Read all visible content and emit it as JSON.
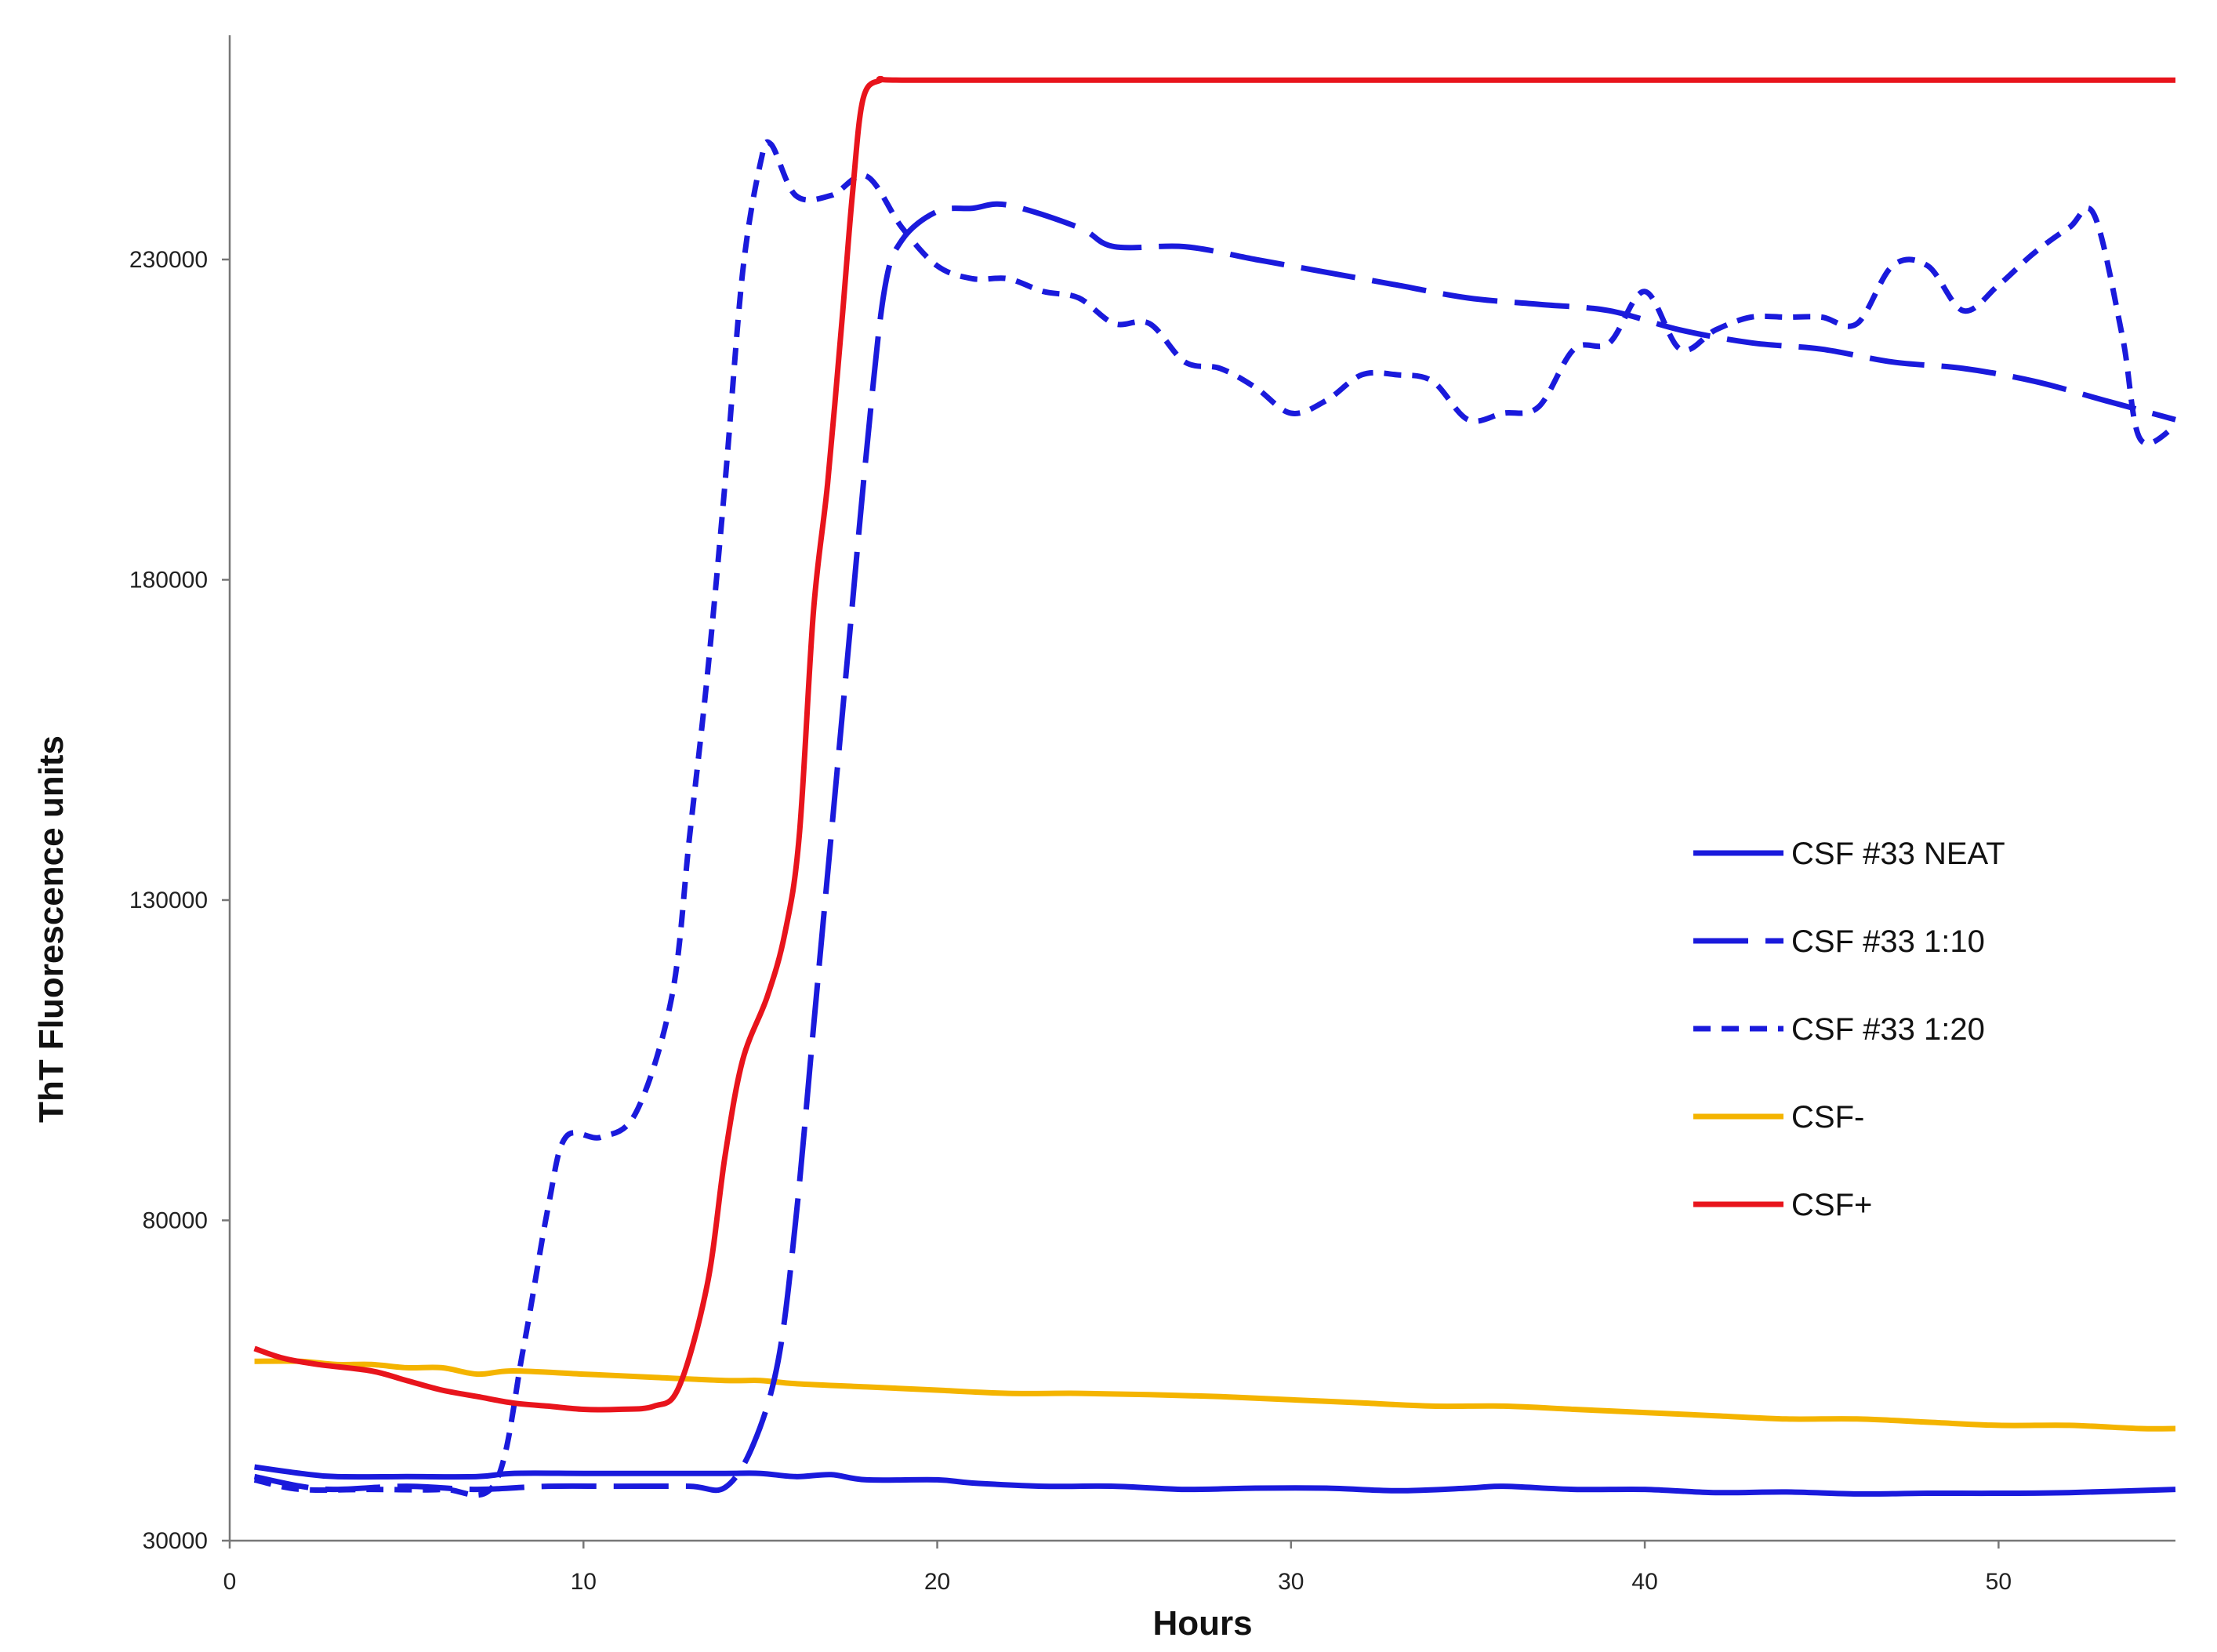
{
  "chart_data": {
    "type": "line",
    "title": "",
    "xlabel": "Hours",
    "ylabel": "ThT Fluorescence units",
    "xlim": [
      0,
      55
    ],
    "ylim": [
      30000,
      265000
    ],
    "x_ticks": [
      0,
      10,
      20,
      30,
      40,
      50
    ],
    "y_ticks": [
      30000,
      80000,
      130000,
      180000,
      230000
    ],
    "grid": false,
    "legend_position": "right",
    "series": [
      {
        "name": "CSF #33 NEAT",
        "color": "#1a1adc",
        "dash": "solid",
        "points": [
          [
            0.7,
            41500
          ],
          [
            2,
            40500
          ],
          [
            3,
            40000
          ],
          [
            5,
            40000
          ],
          [
            7,
            40000
          ],
          [
            8,
            40500
          ],
          [
            10,
            40500
          ],
          [
            12,
            40500
          ],
          [
            14,
            40500
          ],
          [
            15,
            40500
          ],
          [
            16,
            40000
          ],
          [
            17,
            40300
          ],
          [
            18,
            39500
          ],
          [
            20,
            39500
          ],
          [
            21,
            39000
          ],
          [
            23,
            38500
          ],
          [
            25,
            38500
          ],
          [
            27,
            38000
          ],
          [
            29,
            38200
          ],
          [
            31,
            38200
          ],
          [
            33,
            37800
          ],
          [
            35,
            38200
          ],
          [
            36,
            38500
          ],
          [
            38,
            38000
          ],
          [
            40,
            38000
          ],
          [
            42,
            37500
          ],
          [
            44,
            37600
          ],
          [
            46,
            37300
          ],
          [
            48,
            37400
          ],
          [
            50,
            37400
          ],
          [
            52,
            37500
          ],
          [
            55,
            38000
          ]
        ]
      },
      {
        "name": "CSF #33 1:10",
        "color": "#1a1adc",
        "dash": "long",
        "points": [
          [
            0.7,
            40000
          ],
          [
            2,
            38500
          ],
          [
            3,
            38000
          ],
          [
            5,
            38500
          ],
          [
            7,
            38000
          ],
          [
            9,
            38500
          ],
          [
            11,
            38500
          ],
          [
            13,
            38500
          ],
          [
            14,
            38300
          ],
          [
            14.8,
            45000
          ],
          [
            15.5,
            58000
          ],
          [
            16,
            80000
          ],
          [
            16.5,
            110000
          ],
          [
            17,
            140000
          ],
          [
            17.5,
            170000
          ],
          [
            18,
            200000
          ],
          [
            18.5,
            225000
          ],
          [
            19,
            233000
          ],
          [
            20,
            237500
          ],
          [
            21,
            238000
          ],
          [
            22,
            238500
          ],
          [
            24,
            235000
          ],
          [
            25,
            232000
          ],
          [
            27,
            232000
          ],
          [
            29,
            230000
          ],
          [
            31,
            228000
          ],
          [
            33,
            226000
          ],
          [
            35,
            224000
          ],
          [
            37,
            223000
          ],
          [
            39,
            222000
          ],
          [
            41,
            219000
          ],
          [
            43,
            217000
          ],
          [
            45,
            216000
          ],
          [
            47,
            214000
          ],
          [
            49,
            213000
          ],
          [
            51,
            211000
          ],
          [
            53,
            208000
          ],
          [
            55,
            205000
          ]
        ]
      },
      {
        "name": "CSF #33 1:20",
        "color": "#1a1adc",
        "dash": "short",
        "points": [
          [
            0.7,
            39500
          ],
          [
            2,
            38000
          ],
          [
            4,
            38000
          ],
          [
            6,
            38000
          ],
          [
            7.5,
            39000
          ],
          [
            8.3,
            60000
          ],
          [
            9,
            82000
          ],
          [
            9.5,
            93000
          ],
          [
            10.5,
            93000
          ],
          [
            11.5,
            97000
          ],
          [
            12.5,
            115000
          ],
          [
            13,
            140000
          ],
          [
            13.5,
            165000
          ],
          [
            14,
            195000
          ],
          [
            14.5,
            228000
          ],
          [
            15,
            245000
          ],
          [
            15.3,
            248000
          ],
          [
            16,
            240000
          ],
          [
            17,
            240000
          ],
          [
            18,
            243000
          ],
          [
            19,
            235000
          ],
          [
            20,
            229000
          ],
          [
            21,
            227000
          ],
          [
            22,
            227000
          ],
          [
            23,
            225000
          ],
          [
            24,
            224000
          ],
          [
            25,
            220000
          ],
          [
            26,
            220000
          ],
          [
            27,
            214000
          ],
          [
            28,
            213000
          ],
          [
            29,
            210000
          ],
          [
            30,
            206000
          ],
          [
            31,
            208000
          ],
          [
            32,
            212000
          ],
          [
            33,
            212000
          ],
          [
            34,
            211000
          ],
          [
            35,
            205000
          ],
          [
            36,
            206000
          ],
          [
            37,
            207000
          ],
          [
            38,
            216000
          ],
          [
            39,
            217000
          ],
          [
            40,
            225000
          ],
          [
            41,
            216000
          ],
          [
            42,
            219000
          ],
          [
            43,
            221000
          ],
          [
            44,
            221000
          ],
          [
            45,
            221000
          ],
          [
            46,
            220000
          ],
          [
            47,
            229000
          ],
          [
            48,
            229000
          ],
          [
            49,
            222000
          ],
          [
            50,
            226000
          ],
          [
            51,
            231000
          ],
          [
            52,
            235000
          ],
          [
            52.7,
            237000
          ],
          [
            53.5,
            218000
          ],
          [
            54,
            202000
          ],
          [
            55,
            204000
          ]
        ]
      },
      {
        "name": "CSF-",
        "color": "#f4b400",
        "dash": "solid",
        "points": [
          [
            0.7,
            58000
          ],
          [
            2,
            58000
          ],
          [
            3,
            57500
          ],
          [
            4,
            57500
          ],
          [
            5,
            57000
          ],
          [
            6,
            57000
          ],
          [
            7,
            56000
          ],
          [
            8,
            56500
          ],
          [
            10,
            56000
          ],
          [
            12,
            55500
          ],
          [
            14,
            55000
          ],
          [
            15,
            55000
          ],
          [
            16,
            54500
          ],
          [
            18,
            54000
          ],
          [
            20,
            53500
          ],
          [
            22,
            53000
          ],
          [
            24,
            53000
          ],
          [
            26,
            52800
          ],
          [
            28,
            52500
          ],
          [
            30,
            52000
          ],
          [
            32,
            51500
          ],
          [
            34,
            51000
          ],
          [
            36,
            51000
          ],
          [
            38,
            50500
          ],
          [
            40,
            50000
          ],
          [
            42,
            49500
          ],
          [
            44,
            49000
          ],
          [
            46,
            49000
          ],
          [
            48,
            48500
          ],
          [
            50,
            48000
          ],
          [
            52,
            48000
          ],
          [
            54,
            47500
          ],
          [
            55,
            47500
          ]
        ]
      },
      {
        "name": "CSF+",
        "color": "#e8141c",
        "dash": "solid",
        "points": [
          [
            0.7,
            60000
          ],
          [
            1.5,
            58500
          ],
          [
            2.5,
            57500
          ],
          [
            4,
            56500
          ],
          [
            5,
            55000
          ],
          [
            6,
            53500
          ],
          [
            7,
            52500
          ],
          [
            8,
            51500
          ],
          [
            9,
            51000
          ],
          [
            10,
            50500
          ],
          [
            11,
            50500
          ],
          [
            12,
            51000
          ],
          [
            12.7,
            54000
          ],
          [
            13.5,
            70000
          ],
          [
            14,
            90000
          ],
          [
            14.5,
            105000
          ],
          [
            15.2,
            115000
          ],
          [
            15.7,
            125000
          ],
          [
            16.1,
            140000
          ],
          [
            16.5,
            175000
          ],
          [
            16.9,
            195000
          ],
          [
            17.3,
            220000
          ],
          [
            17.6,
            240000
          ],
          [
            17.9,
            255000
          ],
          [
            18.4,
            258000
          ],
          [
            19,
            258000
          ],
          [
            25,
            258000
          ],
          [
            35,
            258000
          ],
          [
            45,
            258000
          ],
          [
            55,
            258000
          ]
        ]
      }
    ]
  }
}
